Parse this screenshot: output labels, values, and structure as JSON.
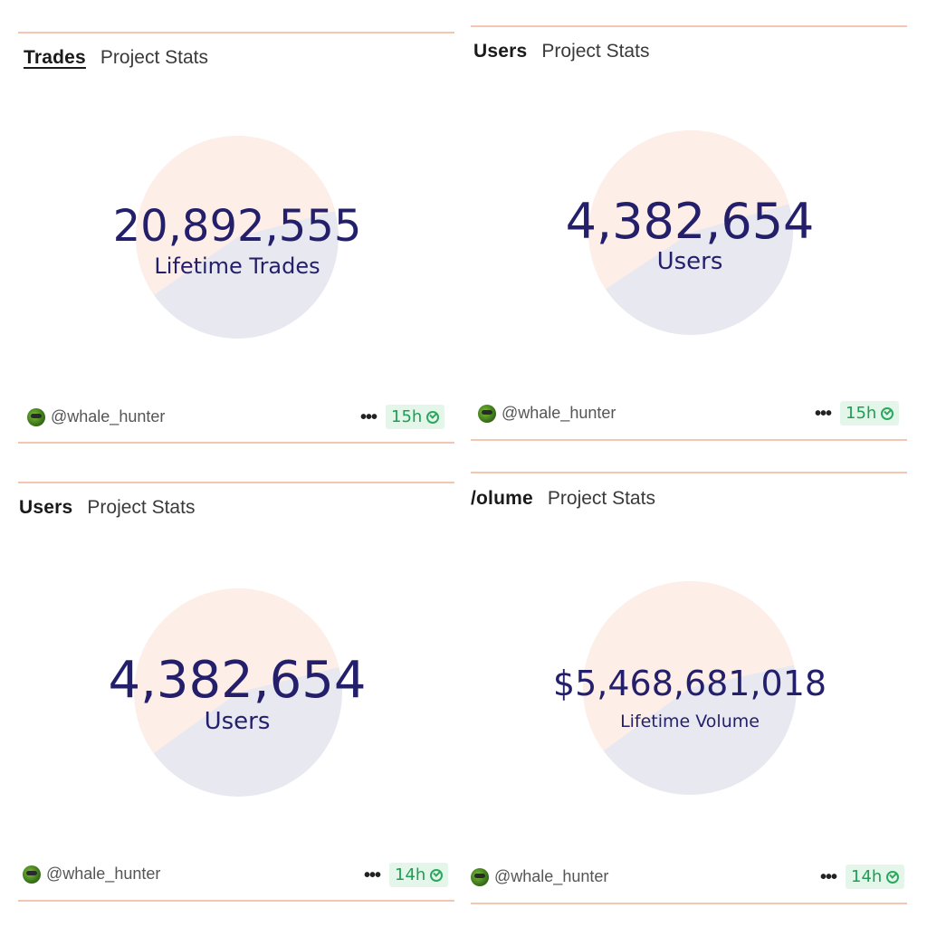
{
  "colors": {
    "pie_top": "#fdeee8",
    "pie_bottom": "#e7e8f0",
    "rule": "#f4c6b1",
    "value_text": "#241f6b",
    "badge_bg": "#e4f6ea",
    "badge_text": "#1f9d55"
  },
  "panels": [
    {
      "tabs": {
        "active": "Trades",
        "inactive": "Project Stats"
      },
      "stat": {
        "value": "20,892,555",
        "label": "Lifetime Trades"
      },
      "footer": {
        "avatar_icon": "frog-avatar-icon",
        "handle": "@whale_hunter",
        "more": "•••",
        "time": "15h"
      }
    },
    {
      "tabs": {
        "active": "Users",
        "inactive": "Project Stats"
      },
      "stat": {
        "value": "4,382,654",
        "label": "Users"
      },
      "footer": {
        "avatar_icon": "frog-avatar-icon",
        "handle": "@whale_hunter",
        "more": "•••",
        "time": "15h"
      }
    },
    {
      "tabs": {
        "active": "Users",
        "inactive": "Project Stats"
      },
      "stat": {
        "value": "4,382,654",
        "label": "Users"
      },
      "footer": {
        "avatar_icon": "frog-avatar-icon",
        "handle": "@whale_hunter",
        "more": "•••",
        "time": "14h"
      }
    },
    {
      "tabs": {
        "active": "/olume",
        "inactive": "Project Stats"
      },
      "stat": {
        "value": "$5,468,681,018",
        "label": "Lifetime Volume"
      },
      "footer": {
        "avatar_icon": "frog-avatar-icon",
        "handle": "@whale_hunter",
        "more": "•••",
        "time": "14h"
      }
    }
  ]
}
